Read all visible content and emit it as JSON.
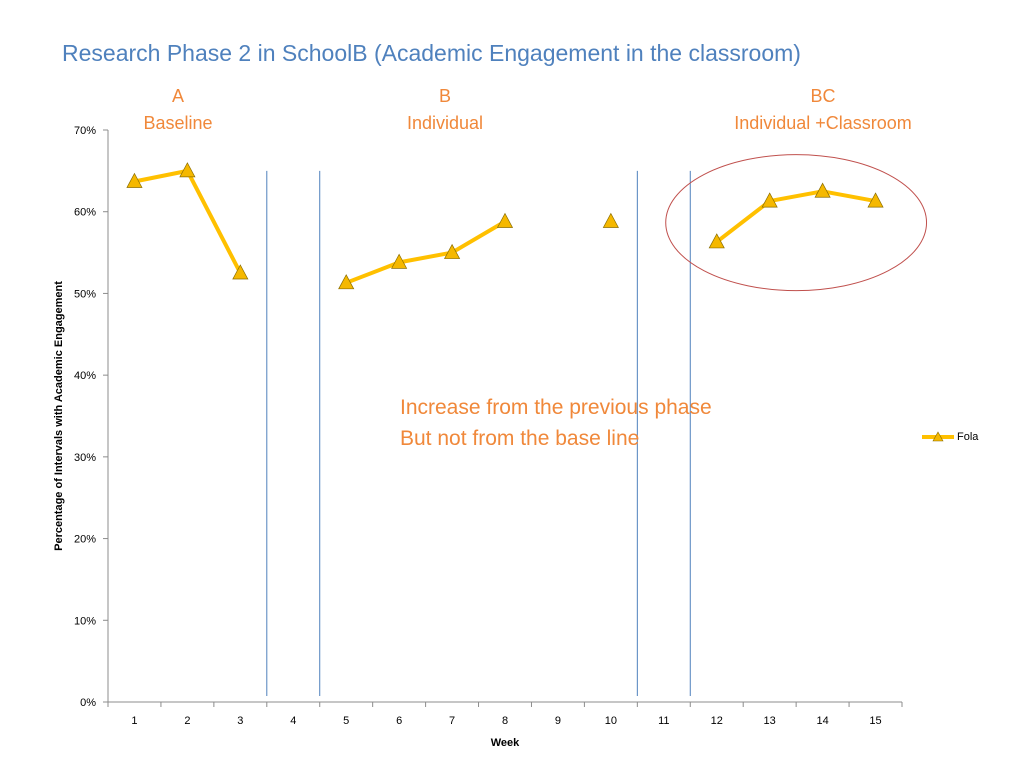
{
  "slide": {
    "title": "Research Phase 2 in SchoolB (Academic Engagement in the classroom)",
    "phases": [
      {
        "code": "A",
        "name": "Baseline"
      },
      {
        "code": "B",
        "name": "Individual"
      },
      {
        "code": "BC",
        "name": "Individual +Classroom"
      }
    ],
    "annotation": [
      "Increase from the previous phase",
      "But not from the base line"
    ]
  },
  "colors": {
    "title": "#4f81bd",
    "phase_text": "#f0883a",
    "series_line": "#ffc000",
    "marker_fill": "#f5b800",
    "phase_divider": "#4f81bd",
    "highlight_circle": "#c0504d"
  },
  "chart_data": {
    "type": "line",
    "categories": [
      "1",
      "2",
      "3",
      "4",
      "5",
      "6",
      "7",
      "8",
      "9",
      "10",
      "11",
      "12",
      "13",
      "14",
      "15"
    ],
    "xlabel": "Week",
    "ylabel": "Percentage of Intervals with Academic Engagement",
    "ylim": [
      0,
      70
    ],
    "yticks": [
      "0%",
      "10%",
      "20%",
      "30%",
      "40%",
      "50%",
      "60%",
      "70%"
    ],
    "series": [
      {
        "name": "Fola",
        "values": [
          63.7,
          65.0,
          52.5,
          null,
          51.3,
          53.8,
          55.0,
          58.8,
          null,
          58.8,
          null,
          56.3,
          61.3,
          62.5,
          61.3
        ]
      }
    ],
    "phase_dividers_after_week": [
      3,
      4,
      10,
      11
    ],
    "highlighted_weeks": [
      12,
      13,
      14,
      15
    ],
    "legend_position": "right",
    "grid": false
  }
}
